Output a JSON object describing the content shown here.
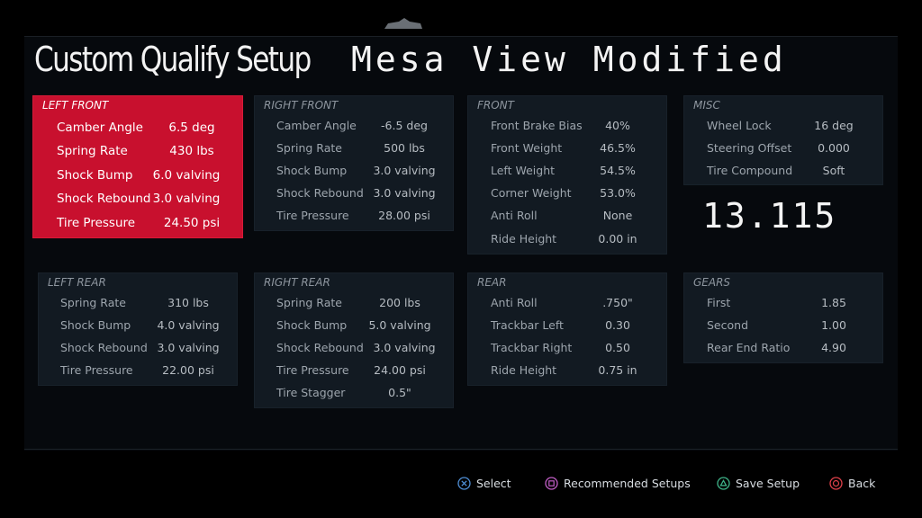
{
  "header": {
    "title": "Custom Qualify Setup",
    "setup_name": "Mesa View Modified"
  },
  "lap_time": "13.115",
  "colors": {
    "selected_panel": "#c8102e",
    "cross": "#4f8fd6",
    "square": "#c25ec7",
    "triangle": "#3fb58a",
    "circle": "#e0414a"
  },
  "panels": {
    "left_front": {
      "title": "LEFT FRONT",
      "rows": [
        {
          "label": "Camber Angle",
          "value": "6.5 deg"
        },
        {
          "label": "Spring Rate",
          "value": "430 lbs"
        },
        {
          "label": "Shock Bump",
          "value": "6.0 valving"
        },
        {
          "label": "Shock Rebound",
          "value": "3.0 valving"
        },
        {
          "label": "Tire Pressure",
          "value": "24.50 psi"
        }
      ]
    },
    "right_front": {
      "title": "RIGHT FRONT",
      "rows": [
        {
          "label": "Camber Angle",
          "value": "-6.5 deg"
        },
        {
          "label": "Spring Rate",
          "value": "500 lbs"
        },
        {
          "label": "Shock Bump",
          "value": "3.0 valving"
        },
        {
          "label": "Shock Rebound",
          "value": "3.0 valving"
        },
        {
          "label": "Tire Pressure",
          "value": "28.00 psi"
        }
      ]
    },
    "front": {
      "title": "FRONT",
      "rows": [
        {
          "label": "Front Brake Bias",
          "value": "40%"
        },
        {
          "label": "Front Weight",
          "value": "46.5%"
        },
        {
          "label": "Left Weight",
          "value": "54.5%"
        },
        {
          "label": "Corner Weight",
          "value": "53.0%"
        },
        {
          "label": "Anti Roll",
          "value": "None"
        },
        {
          "label": "Ride Height",
          "value": "0.00 in"
        }
      ]
    },
    "misc": {
      "title": "MISC",
      "rows": [
        {
          "label": "Wheel Lock",
          "value": "16 deg"
        },
        {
          "label": "Steering Offset",
          "value": "0.000"
        },
        {
          "label": "Tire Compound",
          "value": "Soft"
        }
      ]
    },
    "left_rear": {
      "title": "LEFT REAR",
      "rows": [
        {
          "label": "Spring Rate",
          "value": "310 lbs"
        },
        {
          "label": "Shock Bump",
          "value": "4.0 valving"
        },
        {
          "label": "Shock Rebound",
          "value": "3.0 valving"
        },
        {
          "label": "Tire Pressure",
          "value": "22.00 psi"
        }
      ]
    },
    "right_rear": {
      "title": "RIGHT REAR",
      "rows": [
        {
          "label": "Spring Rate",
          "value": "200 lbs"
        },
        {
          "label": "Shock Bump",
          "value": "5.0 valving"
        },
        {
          "label": "Shock Rebound",
          "value": "3.0 valving"
        },
        {
          "label": "Tire Pressure",
          "value": "24.00 psi"
        },
        {
          "label": "Tire Stagger",
          "value": "0.5\""
        }
      ]
    },
    "rear": {
      "title": "REAR",
      "rows": [
        {
          "label": "Anti Roll",
          "value": ".750\""
        },
        {
          "label": "Trackbar Left",
          "value": "0.30"
        },
        {
          "label": "Trackbar Right",
          "value": "0.50"
        },
        {
          "label": "Ride Height",
          "value": "0.75 in"
        }
      ]
    },
    "gears": {
      "title": "GEARS",
      "rows": [
        {
          "label": "First",
          "value": "1.85"
        },
        {
          "label": "Second",
          "value": "1.00"
        },
        {
          "label": "Rear End Ratio",
          "value": "4.90"
        }
      ]
    }
  },
  "footer": {
    "select": {
      "label": "Select",
      "icon": "cross-button-icon"
    },
    "recommended": {
      "label": "Recommended Setups",
      "icon": "square-button-icon"
    },
    "save": {
      "label": "Save Setup",
      "icon": "triangle-button-icon"
    },
    "back": {
      "label": "Back",
      "icon": "circle-button-icon"
    }
  }
}
